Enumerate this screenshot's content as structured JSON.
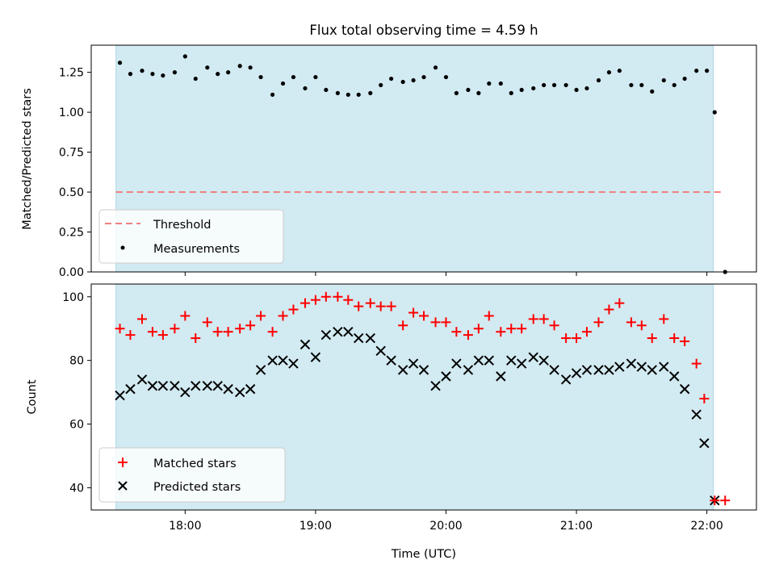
{
  "chart_data": [
    {
      "type": "scatter",
      "title": "Flux total observing time = 4.59 h",
      "xlabel": "",
      "ylabel": "Matched/Predicted stars",
      "ylim": [
        0,
        1.42
      ],
      "yticks": [
        0.0,
        0.25,
        0.5,
        0.75,
        1.0,
        1.25
      ],
      "ytick_labels": [
        "0.00",
        "0.25",
        "0.50",
        "0.75",
        "1.00",
        "1.25"
      ],
      "xlim_hours": [
        17.28,
        22.38
      ],
      "xticks_hours": [
        18,
        19,
        20,
        21,
        22
      ],
      "xtick_labels": [
        "",
        "",
        "",
        "",
        ""
      ],
      "shaded_span_hours": [
        17.47,
        22.05
      ],
      "shaded_color": "#add8e6",
      "threshold": {
        "name": "Threshold",
        "value": 0.5,
        "x_start": 17.47,
        "x_end": 22.13,
        "color": "#f08080",
        "style": "dashed"
      },
      "series": [
        {
          "name": "Measurements",
          "color": "#000000",
          "marker": "dot",
          "x": [
            17.5,
            17.58,
            17.67,
            17.75,
            17.83,
            17.92,
            18.0,
            18.08,
            18.17,
            18.25,
            18.33,
            18.42,
            18.5,
            18.58,
            18.67,
            18.75,
            18.83,
            18.92,
            19.0,
            19.08,
            19.17,
            19.25,
            19.33,
            19.42,
            19.5,
            19.58,
            19.67,
            19.75,
            19.83,
            19.92,
            20.0,
            20.08,
            20.17,
            20.25,
            20.33,
            20.42,
            20.5,
            20.58,
            20.67,
            20.75,
            20.83,
            20.92,
            21.0,
            21.08,
            21.17,
            21.25,
            21.33,
            21.42,
            21.5,
            21.58,
            21.67,
            21.75,
            21.83,
            21.92,
            22.0,
            22.06,
            22.14
          ],
          "y": [
            1.31,
            1.24,
            1.26,
            1.24,
            1.23,
            1.25,
            1.35,
            1.21,
            1.28,
            1.24,
            1.25,
            1.29,
            1.28,
            1.22,
            1.11,
            1.18,
            1.22,
            1.15,
            1.22,
            1.14,
            1.12,
            1.11,
            1.11,
            1.12,
            1.17,
            1.21,
            1.19,
            1.2,
            1.22,
            1.28,
            1.22,
            1.12,
            1.14,
            1.12,
            1.18,
            1.18,
            1.12,
            1.14,
            1.15,
            1.17,
            1.17,
            1.17,
            1.14,
            1.15,
            1.2,
            1.25,
            1.26,
            1.17,
            1.17,
            1.13,
            1.2,
            1.17,
            1.21,
            1.26,
            1.26,
            1.0,
            0.0
          ]
        }
      ],
      "legend": {
        "placement": "lower-left",
        "entries": [
          "Threshold",
          "Measurements"
        ]
      }
    },
    {
      "type": "scatter",
      "title": "",
      "xlabel": "Time (UTC)",
      "ylabel": "Count",
      "ylim": [
        33,
        104
      ],
      "yticks": [
        40,
        60,
        80,
        100
      ],
      "ytick_labels": [
        "40",
        "60",
        "80",
        "100"
      ],
      "xlim_hours": [
        17.28,
        22.38
      ],
      "xticks_hours": [
        18,
        19,
        20,
        21,
        22
      ],
      "xtick_labels": [
        "18:00",
        "19:00",
        "20:00",
        "21:00",
        "22:00"
      ],
      "shaded_span_hours": [
        17.47,
        22.05
      ],
      "shaded_color": "#add8e6",
      "series": [
        {
          "name": "Matched stars",
          "color": "#ff0000",
          "marker": "plus",
          "x": [
            17.5,
            17.58,
            17.67,
            17.75,
            17.83,
            17.92,
            18.0,
            18.08,
            18.17,
            18.25,
            18.33,
            18.42,
            18.5,
            18.58,
            18.67,
            18.75,
            18.83,
            18.92,
            19.0,
            19.08,
            19.17,
            19.25,
            19.33,
            19.42,
            19.5,
            19.58,
            19.67,
            19.75,
            19.83,
            19.92,
            20.0,
            20.08,
            20.17,
            20.25,
            20.33,
            20.42,
            20.5,
            20.58,
            20.67,
            20.75,
            20.83,
            20.92,
            21.0,
            21.08,
            21.17,
            21.25,
            21.33,
            21.42,
            21.5,
            21.58,
            21.67,
            21.75,
            21.83,
            21.92,
            21.98,
            22.06,
            22.14
          ],
          "y": [
            90,
            88,
            93,
            89,
            88,
            90,
            94,
            87,
            92,
            89,
            89,
            90,
            91,
            94,
            89,
            94,
            96,
            98,
            99,
            100,
            100,
            99,
            97,
            98,
            97,
            97,
            91,
            95,
            94,
            92,
            92,
            89,
            88,
            90,
            94,
            89,
            90,
            90,
            93,
            93,
            91,
            87,
            87,
            89,
            92,
            96,
            98,
            92,
            91,
            87,
            93,
            87,
            86,
            79,
            68,
            36,
            36
          ]
        },
        {
          "name": "Predicted stars",
          "color": "#000000",
          "marker": "x",
          "x": [
            17.5,
            17.58,
            17.67,
            17.75,
            17.83,
            17.92,
            18.0,
            18.08,
            18.17,
            18.25,
            18.33,
            18.42,
            18.5,
            18.58,
            18.67,
            18.75,
            18.83,
            18.92,
            19.0,
            19.08,
            19.17,
            19.25,
            19.33,
            19.42,
            19.5,
            19.58,
            19.67,
            19.75,
            19.83,
            19.92,
            20.0,
            20.08,
            20.17,
            20.25,
            20.33,
            20.42,
            20.5,
            20.58,
            20.67,
            20.75,
            20.83,
            20.92,
            21.0,
            21.08,
            21.17,
            21.25,
            21.33,
            21.42,
            21.5,
            21.58,
            21.67,
            21.75,
            21.83,
            21.92,
            21.98,
            22.06
          ],
          "y": [
            69,
            71,
            74,
            72,
            72,
            72,
            70,
            72,
            72,
            72,
            71,
            70,
            71,
            77,
            80,
            80,
            79,
            85,
            81,
            88,
            89,
            89,
            87,
            87,
            83,
            80,
            77,
            79,
            77,
            72,
            75,
            79,
            77,
            80,
            80,
            75,
            80,
            79,
            81,
            80,
            77,
            74,
            76,
            77,
            77,
            77,
            78,
            79,
            78,
            77,
            78,
            75,
            71,
            63,
            54,
            36
          ]
        }
      ],
      "legend": {
        "placement": "lower-left",
        "entries": [
          "Matched stars",
          "Predicted stars"
        ]
      }
    }
  ]
}
